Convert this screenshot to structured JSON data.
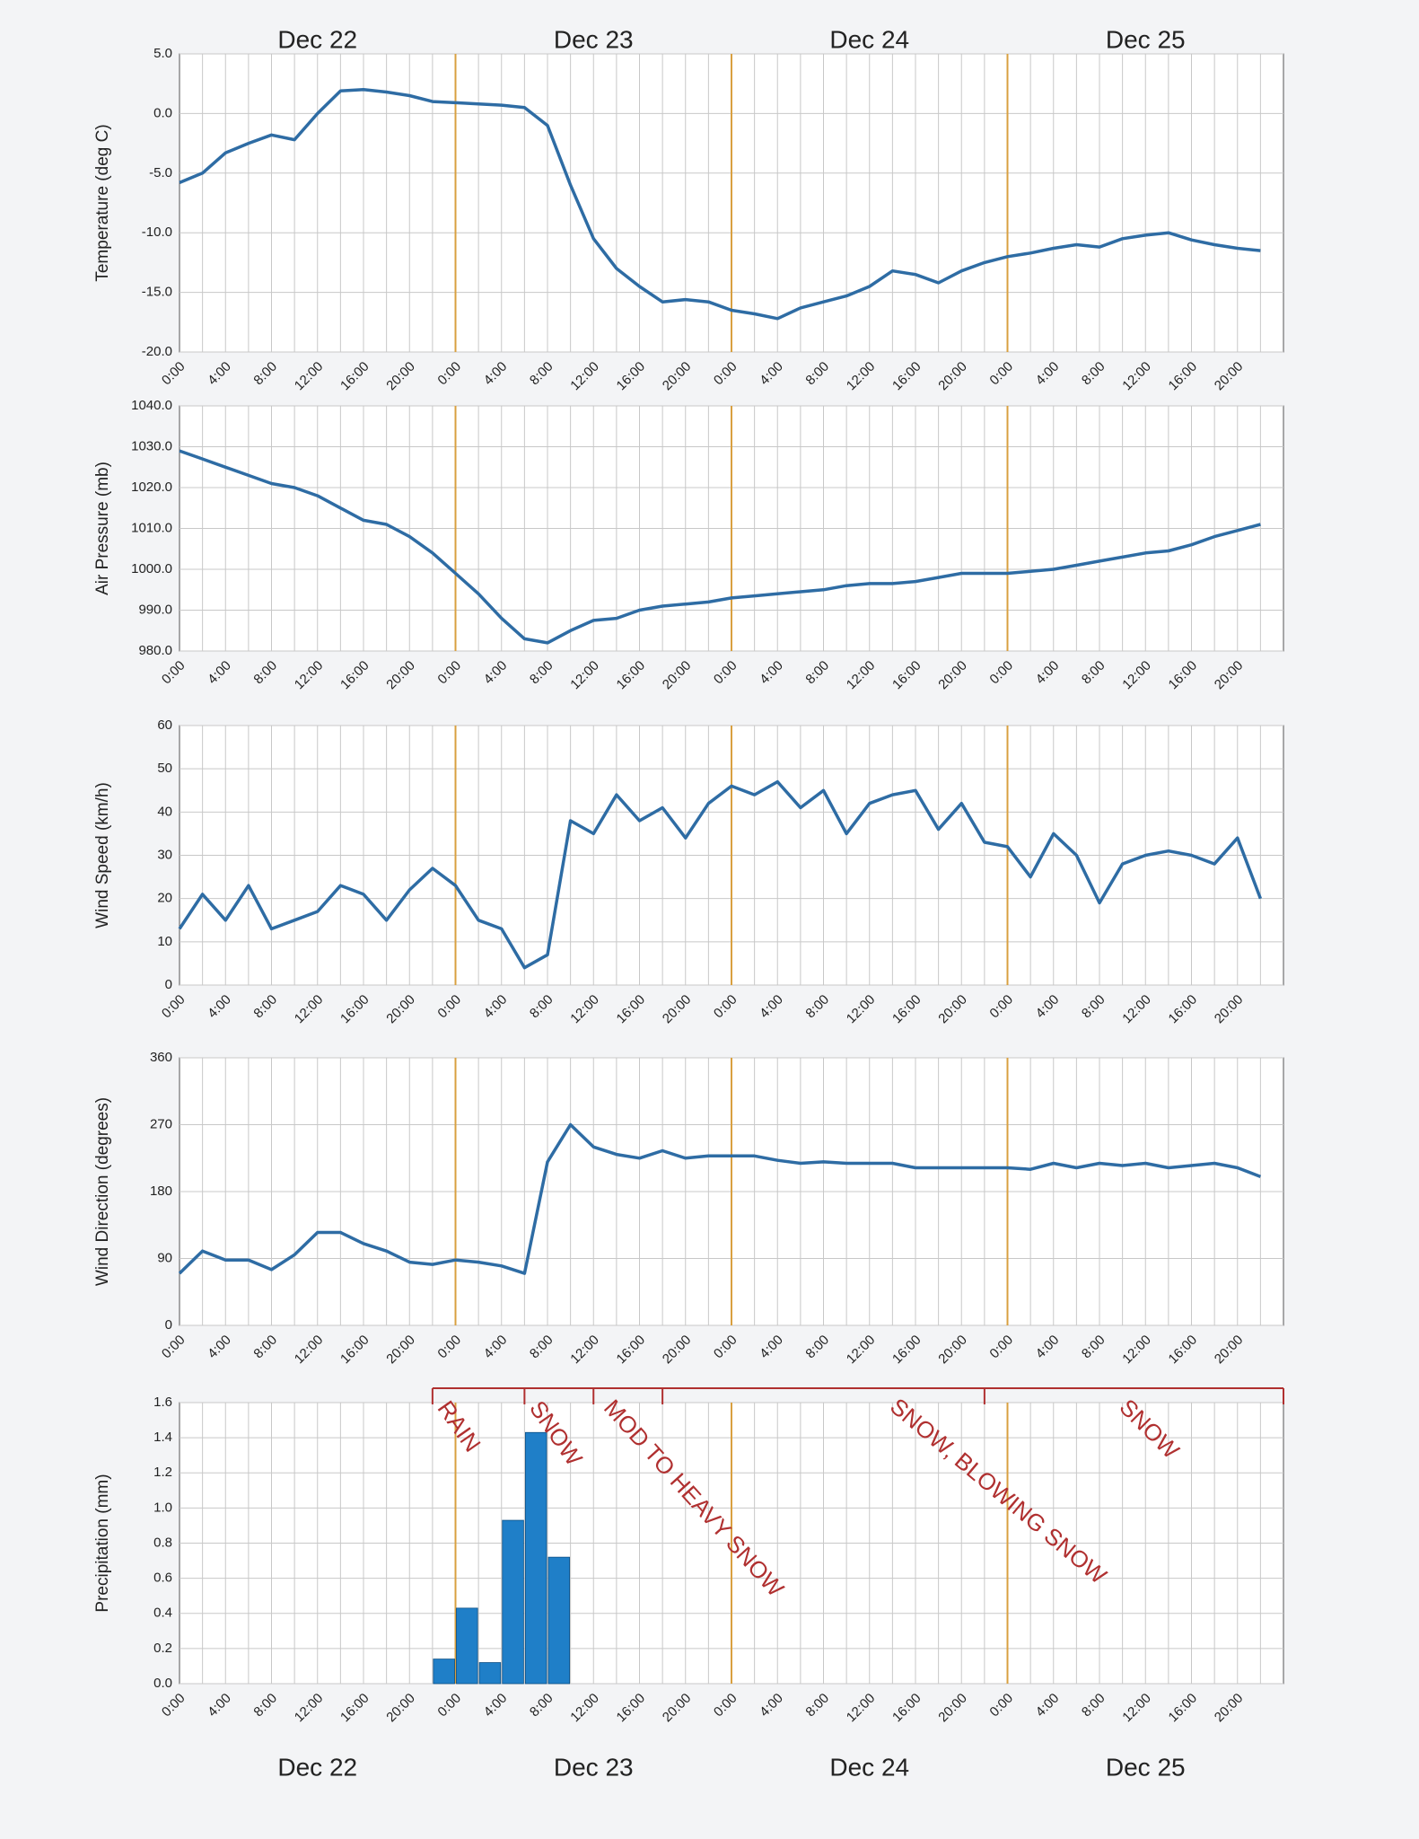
{
  "chart_data": [
    {
      "type": "line",
      "y_label": "Temperature  (deg C)",
      "color": "#2e6ca4",
      "grid": true,
      "divider_color": "#d9a040",
      "day_labels": [
        "Dec 22",
        "Dec 23",
        "Dec 24",
        "Dec 25"
      ],
      "categories": [
        "0:00",
        null,
        "4:00",
        null,
        "8:00",
        null,
        "12:00",
        null,
        "16:00",
        null,
        "20:00",
        null,
        "0:00",
        null,
        "4:00",
        null,
        "8:00",
        null,
        "12:00",
        null,
        "16:00",
        null,
        "20:00",
        null,
        "0:00",
        null,
        "4:00",
        null,
        "8:00",
        null,
        "12:00",
        null,
        "16:00",
        null,
        "20:00",
        null,
        "0:00",
        null,
        "4:00",
        null,
        "8:00",
        null,
        "12:00",
        null,
        "16:00",
        null,
        "20:00",
        null
      ],
      "values": [
        -5.8,
        -5,
        -3.3,
        -2.5,
        -1.8,
        -2.2,
        0,
        1.9,
        2,
        1.8,
        1.5,
        1.0,
        0.9,
        0.8,
        0.7,
        0.5,
        -1.0,
        -6,
        -10.5,
        -13,
        -14.5,
        -15.8,
        -15.6,
        -15.8,
        -16.5,
        -16.8,
        -17.2,
        -16.3,
        -15.8,
        -15.3,
        -14.5,
        -13.2,
        -13.5,
        -14.2,
        -13.2,
        -12.5,
        -12.0,
        -11.7,
        -11.3,
        -11.0,
        -11.2,
        -10.5,
        -10.2,
        -10.0,
        -10.6,
        -11.0,
        -11.3,
        -11.5
      ],
      "ylim": [
        -20,
        5
      ],
      "yticks": [
        {
          "value": -20,
          "label": "-20.0"
        },
        {
          "value": -15,
          "label": "-15.0"
        },
        {
          "value": -10,
          "label": "-10.0"
        },
        {
          "value": -5,
          "label": "-5.0"
        },
        {
          "value": 0,
          "label": "0.0"
        },
        {
          "value": 5,
          "label": "5.0"
        }
      ]
    },
    {
      "type": "line",
      "y_label": "Air Pressure (mb)",
      "color": "#2e6ca4",
      "grid": true,
      "divider_color": "#d9a040",
      "categories": [
        "0:00",
        null,
        "4:00",
        null,
        "8:00",
        null,
        "12:00",
        null,
        "16:00",
        null,
        "20:00",
        null,
        "0:00",
        null,
        "4:00",
        null,
        "8:00",
        null,
        "12:00",
        null,
        "16:00",
        null,
        "20:00",
        null,
        "0:00",
        null,
        "4:00",
        null,
        "8:00",
        null,
        "12:00",
        null,
        "16:00",
        null,
        "20:00",
        null,
        "0:00",
        null,
        "4:00",
        null,
        "8:00",
        null,
        "12:00",
        null,
        "16:00",
        null,
        "20:00",
        null
      ],
      "values": [
        1029,
        1027,
        1025,
        1023,
        1021,
        1020,
        1018,
        1015,
        1012,
        1011,
        1008,
        1004,
        999,
        994,
        988,
        983,
        982,
        985,
        987.5,
        988,
        990,
        991,
        991.5,
        992,
        993,
        993.5,
        994,
        994.5,
        995,
        996,
        996.5,
        996.5,
        997,
        998,
        999,
        999,
        999,
        999.5,
        1000,
        1001,
        1002,
        1003,
        1004,
        1004.5,
        1006,
        1008,
        1009.5,
        1011
      ],
      "ylim": [
        980,
        1040
      ],
      "yticks": [
        {
          "value": 980,
          "label": "980.0"
        },
        {
          "value": 990,
          "label": "990.0"
        },
        {
          "value": 1000,
          "label": "1000.0"
        },
        {
          "value": 1010,
          "label": "1010.0"
        },
        {
          "value": 1020,
          "label": "1020.0"
        },
        {
          "value": 1030,
          "label": "1030.0"
        },
        {
          "value": 1040,
          "label": "1040.0"
        }
      ]
    },
    {
      "type": "line",
      "y_label": "Wind Speed (km/h)",
      "color": "#2e6ca4",
      "grid": true,
      "divider_color": "#d9a040",
      "categories": [
        "0:00",
        null,
        "4:00",
        null,
        "8:00",
        null,
        "12:00",
        null,
        "16:00",
        null,
        "20:00",
        null,
        "0:00",
        null,
        "4:00",
        null,
        "8:00",
        null,
        "12:00",
        null,
        "16:00",
        null,
        "20:00",
        null,
        "0:00",
        null,
        "4:00",
        null,
        "8:00",
        null,
        "12:00",
        null,
        "16:00",
        null,
        "20:00",
        null,
        "0:00",
        null,
        "4:00",
        null,
        "8:00",
        null,
        "12:00",
        null,
        "16:00",
        null,
        "20:00",
        null
      ],
      "values": [
        13,
        21,
        15,
        23,
        13,
        15,
        17,
        23,
        21,
        15,
        22,
        27,
        23,
        15,
        13,
        4,
        7,
        38,
        35,
        44,
        38,
        41,
        34,
        42,
        46,
        44,
        47,
        41,
        45,
        35,
        42,
        44,
        45,
        36,
        42,
        33,
        32,
        25,
        35,
        30,
        19,
        28,
        30,
        31,
        30,
        28,
        34,
        20
      ],
      "ylim": [
        0,
        60
      ],
      "yticks": [
        0,
        10,
        20,
        30,
        40,
        50,
        60
      ]
    },
    {
      "type": "line",
      "y_label": "Wind Direction (degrees)",
      "color": "#2e6ca4",
      "grid": true,
      "divider_color": "#d9a040",
      "categories": [
        "0:00",
        null,
        "4:00",
        null,
        "8:00",
        null,
        "12:00",
        null,
        "16:00",
        null,
        "20:00",
        null,
        "0:00",
        null,
        "4:00",
        null,
        "8:00",
        null,
        "12:00",
        null,
        "16:00",
        null,
        "20:00",
        null,
        "0:00",
        null,
        "4:00",
        null,
        "8:00",
        null,
        "12:00",
        null,
        "16:00",
        null,
        "20:00",
        null,
        "0:00",
        null,
        "4:00",
        null,
        "8:00",
        null,
        "12:00",
        null,
        "16:00",
        null,
        "20:00",
        null
      ],
      "values": [
        70,
        100,
        88,
        88,
        75,
        95,
        125,
        125,
        110,
        100,
        85,
        82,
        88,
        85,
        80,
        70,
        220,
        270,
        240,
        230,
        225,
        235,
        225,
        228,
        228,
        228,
        222,
        218,
        220,
        218,
        218,
        218,
        212,
        212,
        212,
        212,
        212,
        210,
        218,
        212,
        218,
        215,
        218,
        212,
        215,
        218,
        212,
        200
      ],
      "ylim": [
        0,
        360
      ],
      "yticks": [
        0,
        90,
        180,
        270,
        360
      ]
    },
    {
      "type": "bar",
      "y_label": "Precipitation (mm)",
      "color": "#1f7fc8",
      "grid": true,
      "divider_color": "#d9a040",
      "day_labels": [
        "Dec 22",
        "Dec 23",
        "Dec 24",
        "Dec 25"
      ],
      "annotations": [
        "RAIN",
        "SNOW",
        "MOD TO HEAVY SNOW",
        "SNOW, BLOWING SNOW",
        "SNOW"
      ],
      "annotation_color": "#b03030",
      "categories": [
        "0:00",
        null,
        "4:00",
        null,
        "8:00",
        null,
        "12:00",
        null,
        "16:00",
        null,
        "20:00",
        null,
        "0:00",
        null,
        "4:00",
        null,
        "8:00",
        null,
        "12:00",
        null,
        "16:00",
        null,
        "20:00",
        null,
        "0:00",
        null,
        "4:00",
        null,
        "8:00",
        null,
        "12:00",
        null,
        "16:00",
        null,
        "20:00",
        null,
        "0:00",
        null,
        "4:00",
        null,
        "8:00",
        null,
        "12:00",
        null,
        "16:00",
        null,
        "20:00",
        null
      ],
      "values": [
        0,
        0,
        0,
        0,
        0,
        0,
        0,
        0,
        0,
        0,
        0,
        0.14,
        0.43,
        0.12,
        0.93,
        1.43,
        0.72,
        0,
        0,
        0,
        0,
        0,
        0,
        0,
        0,
        0,
        0,
        0,
        0,
        0,
        0,
        0,
        0,
        0,
        0,
        0,
        0,
        0,
        0,
        0,
        0,
        0,
        0,
        0,
        0,
        0,
        0,
        0
      ],
      "ylim": [
        0,
        1.6
      ],
      "yticks": [
        {
          "value": 0,
          "label": "0.0"
        },
        {
          "value": 0.2,
          "label": "0.2"
        },
        {
          "value": 0.4,
          "label": "0.4"
        },
        {
          "value": 0.6,
          "label": "0.6"
        },
        {
          "value": 0.8,
          "label": "0.8"
        },
        {
          "value": 1,
          "label": "1.0"
        },
        {
          "value": 1.2,
          "label": "1.2"
        },
        {
          "value": 1.4,
          "label": "1.4"
        },
        {
          "value": 1.6,
          "label": "1.6"
        }
      ]
    }
  ]
}
